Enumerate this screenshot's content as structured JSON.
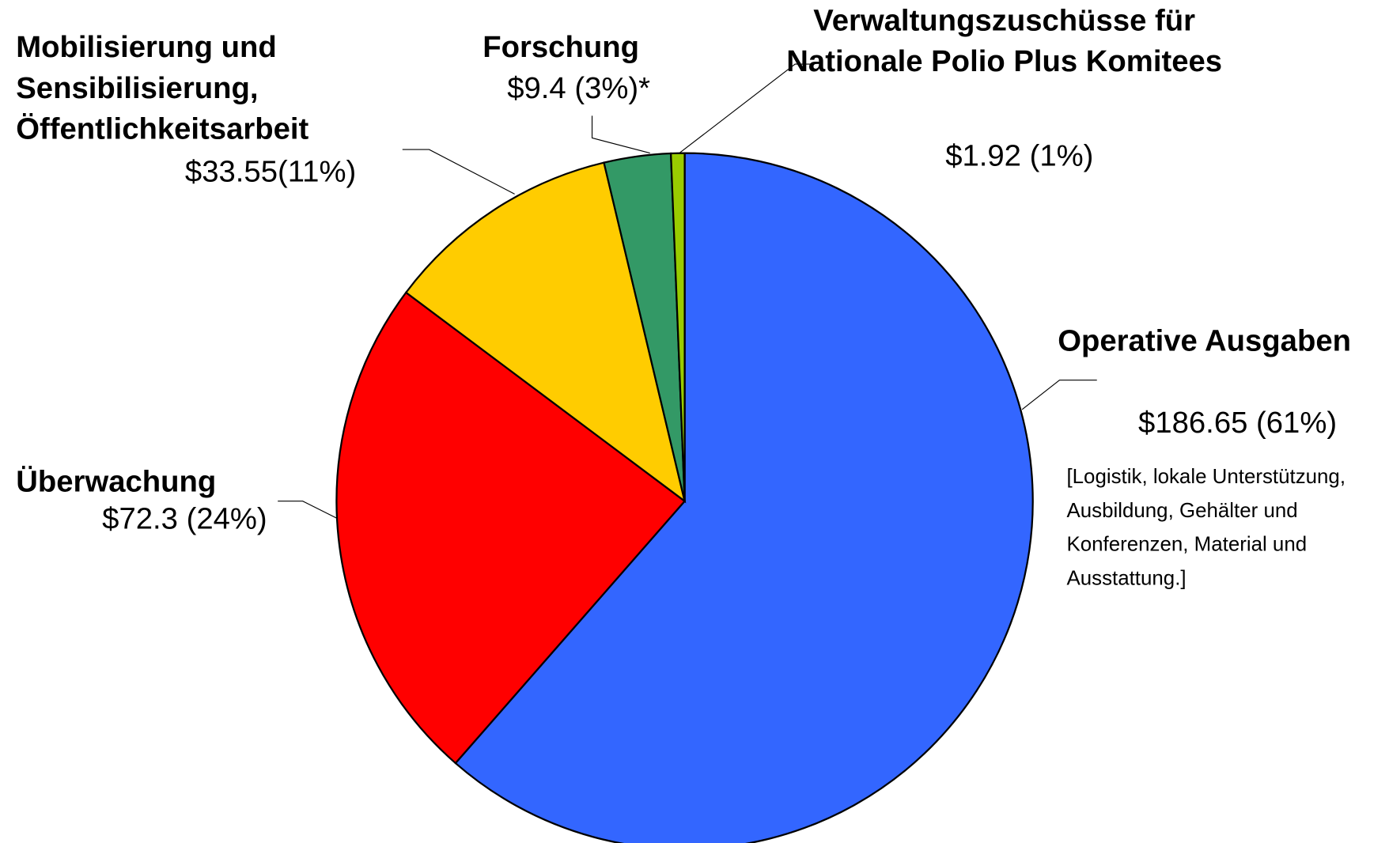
{
  "chart_data": {
    "type": "pie",
    "categories": [
      "Operative Ausgaben",
      "Überwachung",
      "Mobilisierung und Sensibilisierung, Öffentlichkeitsarbeit",
      "Forschung",
      "Verwaltungszuschüsse für Nationale Polio Plus Komitees"
    ],
    "values": [
      186.65,
      72.3,
      33.55,
      9.4,
      1.92
    ],
    "value_labels": [
      "$186.65 (61%)",
      "$72.3 (24%)",
      "$33.55(11%)",
      "$9.4 (3%)*",
      "$1.92 (1%)"
    ],
    "colors": [
      "#3366ff",
      "#ff0000",
      "#ffcc00",
      "#339966",
      "#99cc00"
    ],
    "annotation": "[Logistik, lokale Unterstützung, Ausbildung, Gehälter und Konferenzen, Material und Ausstattung.]"
  }
}
